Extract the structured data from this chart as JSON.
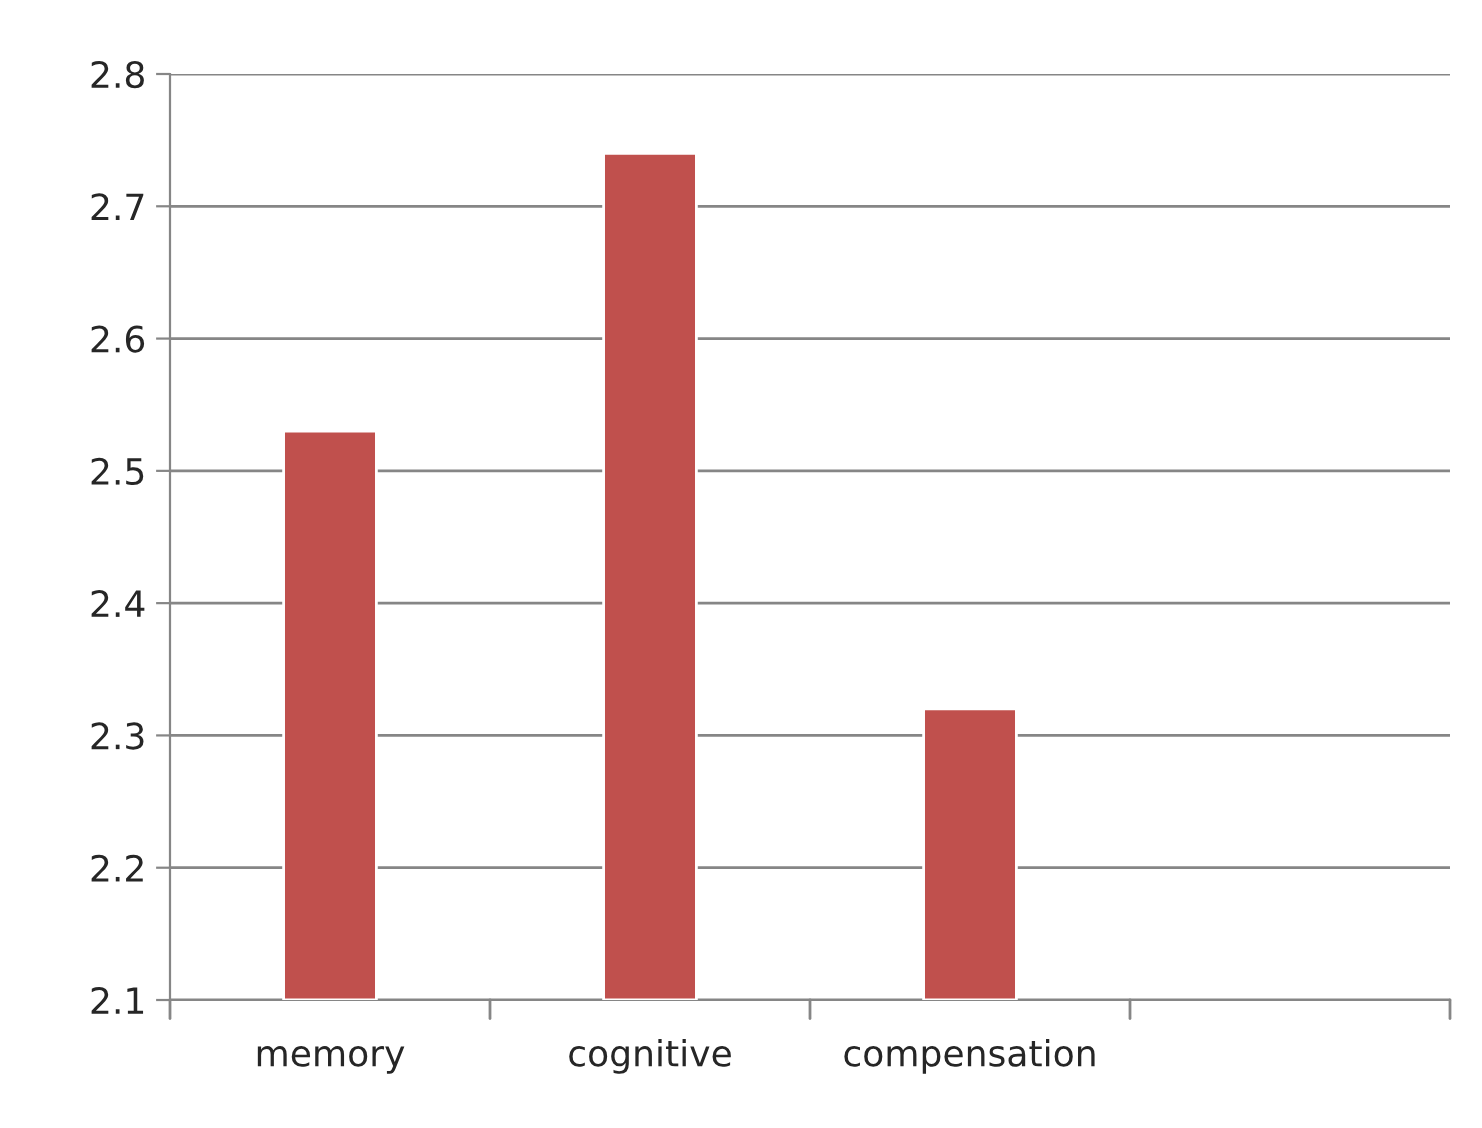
{
  "chart_data": {
    "type": "bar",
    "categories": [
      "memory",
      "cognitive",
      "compensation",
      null
    ],
    "values": [
      2.53,
      2.74,
      2.32,
      null
    ],
    "color": "#c0504d",
    "ylim": [
      2.1,
      2.8
    ],
    "yticks": [
      2.1,
      2.2,
      2.3,
      2.4,
      2.5,
      2.6,
      2.7,
      2.8
    ],
    "grid": "y",
    "legend": false
  }
}
